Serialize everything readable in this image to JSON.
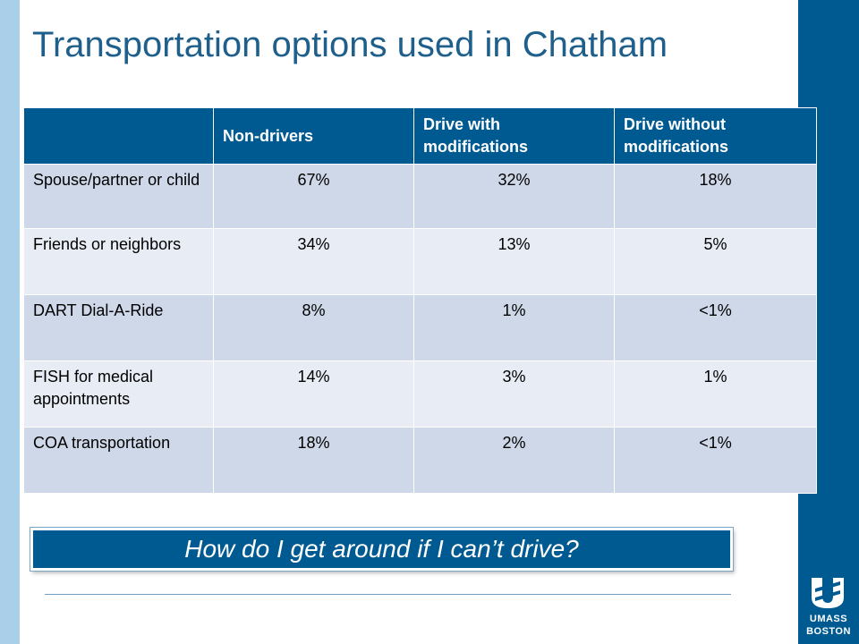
{
  "title": "Transportation options used in Chatham",
  "table": {
    "headers": [
      "",
      "Non-drivers",
      "Drive with modifications",
      "Drive without modifications"
    ],
    "rows": [
      {
        "label": "Spouse/partner or child",
        "values": [
          "67%",
          "32%",
          "18%"
        ]
      },
      {
        "label": "Friends or neighbors",
        "values": [
          "34%",
          "13%",
          "5%"
        ]
      },
      {
        "label": "DART Dial-A-Ride",
        "values": [
          "8%",
          "1%",
          "<1%"
        ]
      },
      {
        "label": "FISH for medical appointments",
        "values": [
          "14%",
          "3%",
          "1%"
        ]
      },
      {
        "label": "COA transportation",
        "values": [
          "18%",
          "2%",
          "<1%"
        ]
      }
    ]
  },
  "callout": "How do I get around if I can’t drive?",
  "logo": {
    "line1": "UMASS",
    "line2": "BOSTON"
  },
  "colors": {
    "accent": "#005a92",
    "title": "#1f5f8b",
    "background": "#a9cfe9"
  }
}
